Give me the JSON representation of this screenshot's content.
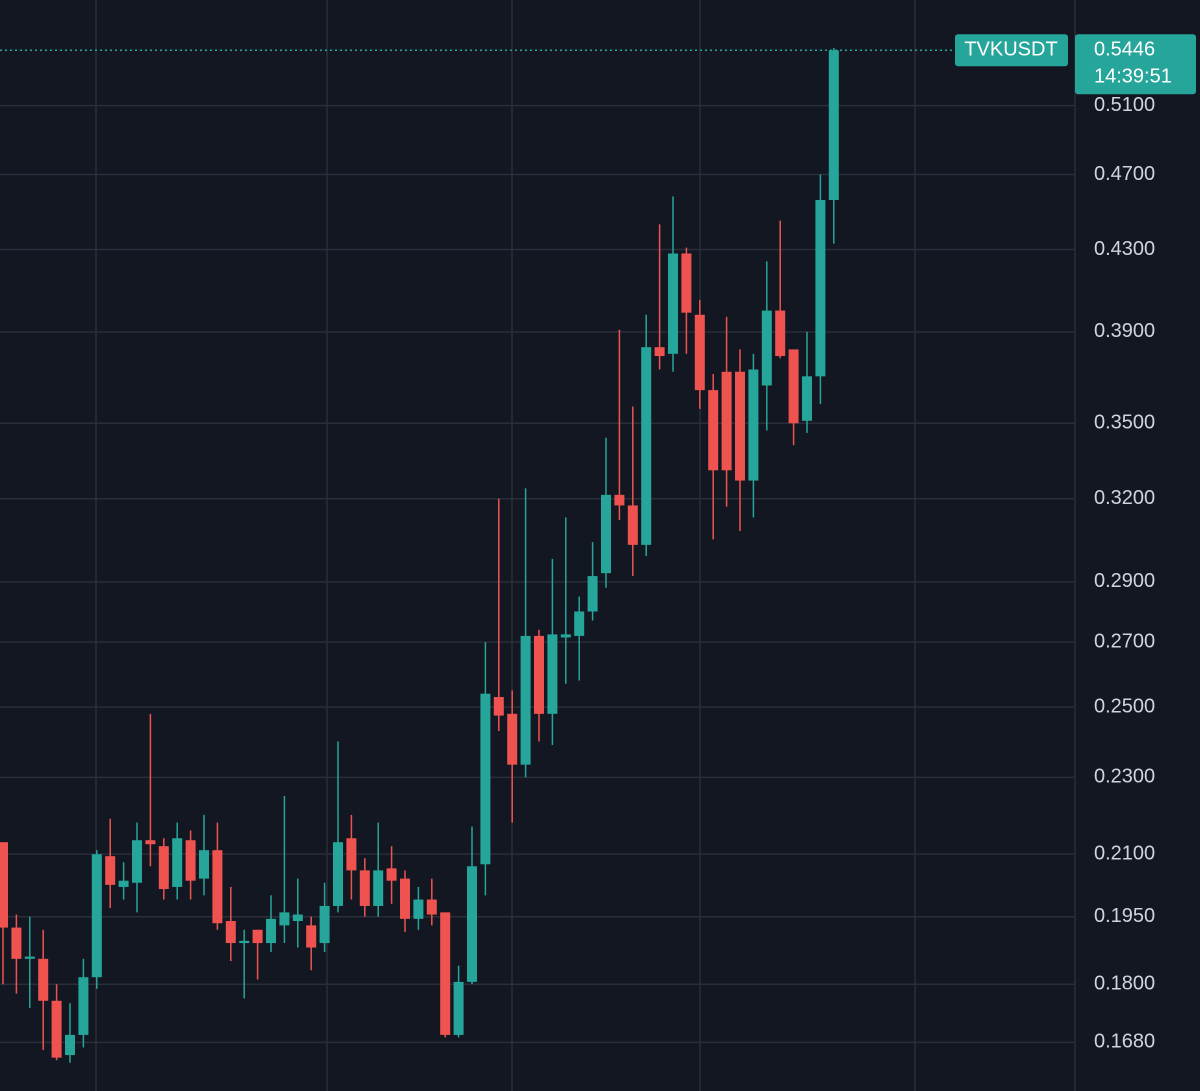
{
  "chart_data": {
    "type": "candlestick",
    "symbol": "TVKUSDT",
    "countdown": "14:39:51",
    "log_scale": true,
    "grid": true,
    "up_color": "#26a69a",
    "down_color": "#ef5350",
    "ylim": [
      0.1586,
      0.578
    ],
    "yticks": [
      {
        "value": 0.51,
        "label": "0.5100"
      },
      {
        "value": 0.47,
        "label": "0.4700"
      },
      {
        "value": 0.43,
        "label": "0.4300"
      },
      {
        "value": 0.39,
        "label": "0.3900"
      },
      {
        "value": 0.35,
        "label": "0.3500"
      },
      {
        "value": 0.32,
        "label": "0.3200"
      },
      {
        "value": 0.29,
        "label": "0.2900"
      },
      {
        "value": 0.27,
        "label": "0.2700"
      },
      {
        "value": 0.25,
        "label": "0.2500"
      },
      {
        "value": 0.23,
        "label": "0.2300"
      },
      {
        "value": 0.21,
        "label": "0.2100"
      },
      {
        "value": 0.195,
        "label": "0.1950"
      },
      {
        "value": 0.18,
        "label": "0.1800"
      },
      {
        "value": 0.168,
        "label": "0.1680"
      }
    ],
    "open": [
      0.213,
      0.1925,
      0.1855,
      0.1855,
      0.1765,
      0.1655,
      0.1695,
      0.1815,
      0.2095,
      0.202,
      0.203,
      0.2135,
      0.212,
      0.202,
      0.2135,
      0.204,
      0.211,
      0.194,
      0.189,
      0.192,
      0.189,
      0.193,
      0.194,
      0.193,
      0.189,
      0.1975,
      0.214,
      0.206,
      0.1975,
      0.2065,
      0.204,
      0.1945,
      0.199,
      0.196,
      0.1695,
      0.1805,
      0.2075,
      0.253,
      0.248,
      0.2335,
      0.272,
      0.248,
      0.2715,
      0.272,
      0.28,
      0.293,
      0.3215,
      0.3175,
      0.303,
      0.383,
      0.38,
      0.428,
      0.398,
      0.364,
      0.372,
      0.372,
      0.327,
      0.366,
      0.4,
      0.382,
      0.351,
      0.37,
      0.456
    ],
    "high": [
      0.213,
      0.1955,
      0.195,
      0.192,
      0.18,
      0.176,
      0.1855,
      0.211,
      0.219,
      0.208,
      0.218,
      0.248,
      0.214,
      0.218,
      0.216,
      0.22,
      0.218,
      0.202,
      0.192,
      0.192,
      0.2,
      0.225,
      0.204,
      0.195,
      0.203,
      0.24,
      0.22,
      0.209,
      0.218,
      0.212,
      0.206,
      0.202,
      0.204,
      0.196,
      0.184,
      0.217,
      0.27,
      0.32,
      0.255,
      0.324,
      0.274,
      0.298,
      0.313,
      0.285,
      0.304,
      0.344,
      0.391,
      0.357,
      0.398,
      0.443,
      0.458,
      0.431,
      0.405,
      0.371,
      0.397,
      0.382,
      0.38,
      0.424,
      0.445,
      0.382,
      0.39,
      0.47,
      0.546
    ],
    "low": [
      0.18,
      0.178,
      0.175,
      0.1665,
      0.1645,
      0.164,
      0.167,
      0.179,
      0.197,
      0.199,
      0.196,
      0.207,
      0.199,
      0.199,
      0.199,
      0.2,
      0.192,
      0.185,
      0.177,
      0.181,
      0.187,
      0.189,
      0.188,
      0.183,
      0.187,
      0.196,
      0.199,
      0.195,
      0.195,
      0.198,
      0.1915,
      0.192,
      0.193,
      0.169,
      0.169,
      0.18,
      0.2,
      0.243,
      0.218,
      0.23,
      0.24,
      0.239,
      0.257,
      0.258,
      0.277,
      0.288,
      0.312,
      0.292,
      0.299,
      0.373,
      0.372,
      0.38,
      0.356,
      0.305,
      0.317,
      0.308,
      0.313,
      0.347,
      0.378,
      0.341,
      0.346,
      0.358,
      0.433
    ],
    "close": [
      0.1925,
      0.1855,
      0.186,
      0.1765,
      0.165,
      0.1695,
      0.1815,
      0.21,
      0.2025,
      0.2035,
      0.2135,
      0.2125,
      0.2015,
      0.214,
      0.2035,
      0.211,
      0.1935,
      0.189,
      0.1895,
      0.189,
      0.1945,
      0.196,
      0.1955,
      0.188,
      0.1975,
      0.213,
      0.206,
      0.1975,
      0.206,
      0.2035,
      0.1945,
      0.199,
      0.1955,
      0.1695,
      0.1805,
      0.207,
      0.254,
      0.2475,
      0.2335,
      0.272,
      0.248,
      0.2725,
      0.2725,
      0.28,
      0.292,
      0.3215,
      0.3175,
      0.303,
      0.383,
      0.379,
      0.428,
      0.399,
      0.364,
      0.331,
      0.331,
      0.327,
      0.373,
      0.4,
      0.379,
      0.35,
      0.37,
      0.456,
      0.5446
    ]
  }
}
